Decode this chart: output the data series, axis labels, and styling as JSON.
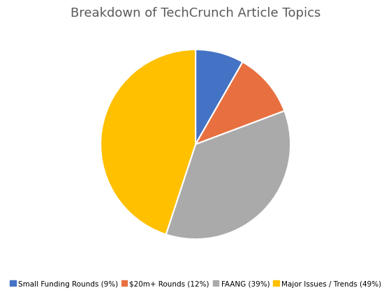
{
  "title": "Breakdown of TechCrunch Article Topics",
  "labels": [
    "Small Funding Rounds (9%)",
    "$20m+ Rounds (12%)",
    "FAANG (39%)",
    "Major Issues / Trends (49%)"
  ],
  "values": [
    9,
    12,
    39,
    49
  ],
  "colors": [
    "#4472C4",
    "#E87040",
    "#AAAAAA",
    "#FFC000"
  ],
  "startangle": 90,
  "title_fontsize": 13,
  "title_color": "#595959",
  "legend_fontsize": 7.5,
  "background_color": "#FFFFFF"
}
